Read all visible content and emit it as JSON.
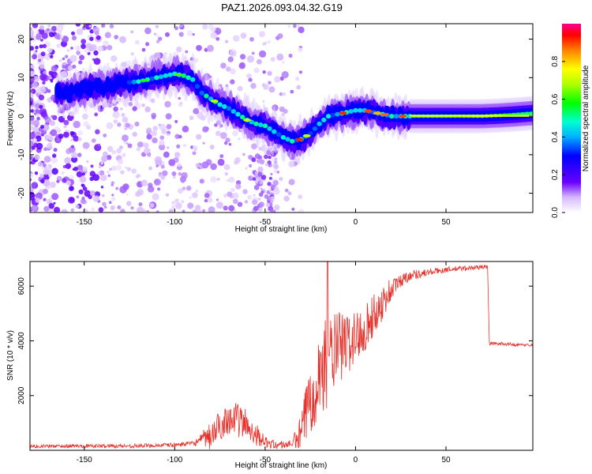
{
  "title": "PAZ1.2026.093.04.32.G19",
  "colors": {
    "line": "#e8302a",
    "frame": "#000000"
  },
  "chart_data": [
    {
      "type": "heatmap",
      "xlabel": "Height of straight line (km)",
      "ylabel": "Frequency (Hz)",
      "xlim": [
        -180,
        98
      ],
      "ylim": [
        -25,
        24
      ],
      "xticks": [
        -150,
        -100,
        -50,
        0,
        50
      ],
      "yticks": [
        20,
        10,
        0,
        -10,
        -20
      ],
      "ridge": {
        "x": [
          -160,
          -150,
          -140,
          -130,
          -120,
          -110,
          -100,
          -95,
          -90,
          -85,
          -80,
          -75,
          -70,
          -65,
          -60,
          -55,
          -50,
          -45,
          -40,
          -35,
          -30,
          -25,
          -20,
          -15,
          -10,
          -5,
          0,
          5,
          10,
          15,
          20,
          25,
          30,
          40,
          50,
          60,
          70,
          80,
          90,
          98
        ],
        "y": [
          6,
          7,
          7.5,
          8.5,
          9,
          10,
          11,
          10.5,
          9.5,
          6,
          4.5,
          3,
          2,
          0.5,
          -1,
          -2,
          -2.5,
          -4,
          -5.5,
          -6.5,
          -6,
          -4.5,
          -2,
          0,
          0.5,
          1,
          1.5,
          1.5,
          1,
          0.5,
          0,
          0,
          0,
          0,
          0,
          0,
          0,
          0.2,
          0.5,
          0.8
        ]
      },
      "colorbar": {
        "label": "Normalized spectral amplitude",
        "range": [
          0,
          1
        ],
        "ticks": [
          "0.0",
          "0.2",
          "0.4",
          "0.6",
          "0.8"
        ]
      }
    },
    {
      "type": "line",
      "xlabel": "Height of straight line (km)",
      "ylabel": "SNR (10 * v/v)",
      "xlim": [
        -180,
        98
      ],
      "ylim": [
        0,
        6900
      ],
      "xticks": [
        -150,
        -100,
        -50,
        0,
        50
      ],
      "yticks": [
        2000,
        4000,
        6000
      ],
      "series_envelope": {
        "x": [
          -180,
          -120,
          -100,
          -90,
          -80,
          -75,
          -70,
          -65,
          -60,
          -55,
          -50,
          -45,
          -40,
          -35,
          -30,
          -25,
          -20,
          -15,
          -10,
          -5,
          0,
          5,
          10,
          15,
          20,
          25,
          30,
          40,
          50,
          60,
          70,
          73,
          74,
          80,
          90,
          98
        ],
        "y": [
          150,
          160,
          200,
          250,
          500,
          900,
          1200,
          1100,
          900,
          600,
          300,
          200,
          200,
          250,
          600,
          2000,
          2800,
          3300,
          3700,
          3900,
          4100,
          4500,
          4900,
          5400,
          5900,
          6200,
          6400,
          6500,
          6600,
          6650,
          6700,
          6700,
          3900,
          3900,
          3850,
          3850
        ]
      },
      "noise_amplitude": {
        "x": [
          -180,
          -90,
          -80,
          -60,
          -50,
          -35,
          -25,
          -15,
          -5,
          5,
          15,
          25,
          40,
          73,
          74,
          98
        ],
        "y": [
          60,
          80,
          400,
          500,
          150,
          100,
          1100,
          1300,
          900,
          700,
          500,
          250,
          120,
          80,
          60,
          50
        ]
      },
      "annotations": [
        "spike near x=-15 reaching ~6900"
      ]
    }
  ],
  "texts": {
    "top_xlabel": "Height of straight line (km)",
    "top_ylabel": "Frequency (Hz)",
    "bottom_xlabel": "Height of straight line (km)",
    "bottom_ylabel": "SNR (10 * v/v)",
    "cbar_label": "Normalized spectral amplitude",
    "top_xticks": [
      "-150",
      "-100",
      "-50",
      "0",
      "50"
    ],
    "top_yticks": [
      "20",
      "10",
      "0",
      "-10",
      "-20"
    ],
    "bottom_xticks": [
      "-150",
      "-100",
      "-50",
      "0",
      "50"
    ],
    "bottom_yticks": [
      "2000",
      "4000",
      "6000"
    ],
    "cbar_ticks": [
      "0.0",
      "0.2",
      "0.4",
      "0.6",
      "0.8"
    ]
  }
}
